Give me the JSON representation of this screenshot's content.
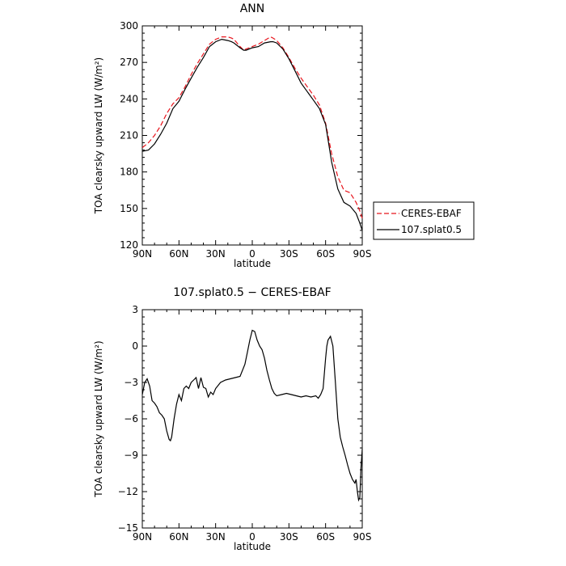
{
  "chart_data": [
    {
      "type": "line",
      "title": "ANN",
      "xlabel": "latitude",
      "ylabel": "TOA clearsky upward LW (W/m²)",
      "xlim": [
        90,
        -90
      ],
      "ylim": [
        120,
        300
      ],
      "xticks": [
        90,
        60,
        30,
        0,
        -30,
        -60,
        -90
      ],
      "xtick_labels": [
        "90N",
        "60N",
        "30N",
        "0",
        "30S",
        "60S",
        "90S"
      ],
      "yticks": [
        120,
        150,
        180,
        210,
        240,
        270,
        300
      ],
      "ytick_labels": [
        "120",
        "150",
        "180",
        "210",
        "240",
        "270",
        "300"
      ],
      "legend": "right",
      "series": [
        {
          "name": "CERES-EBAF",
          "color": "#e8141c",
          "dash": "dashed",
          "x": [
            90,
            85,
            80,
            75,
            70,
            65,
            60,
            55,
            50,
            45,
            40,
            35,
            30,
            25,
            20,
            17,
            15,
            10,
            7,
            5,
            0,
            -5,
            -10,
            -15,
            -17,
            -20,
            -25,
            -30,
            -35,
            -40,
            -45,
            -50,
            -55,
            -60,
            -65,
            -70,
            -75,
            -80,
            -85,
            -88,
            -90
          ],
          "y": [
            200,
            204,
            210,
            218,
            228,
            236,
            241,
            250,
            260,
            269,
            277,
            285,
            289,
            291,
            291,
            290,
            289,
            283,
            280,
            281,
            283,
            285,
            288,
            291,
            290,
            288,
            282,
            274,
            265,
            257,
            250,
            243,
            235,
            220,
            195,
            176,
            165,
            163,
            155,
            148,
            142
          ]
        },
        {
          "name": "107.splat0.5",
          "color": "#000000",
          "dash": "solid",
          "x": [
            90,
            85,
            80,
            75,
            70,
            65,
            60,
            55,
            50,
            45,
            40,
            35,
            30,
            25,
            20,
            17,
            15,
            10,
            7,
            5,
            0,
            -5,
            -10,
            -15,
            -17,
            -20,
            -25,
            -30,
            -35,
            -40,
            -45,
            -50,
            -55,
            -60,
            -65,
            -70,
            -75,
            -80,
            -85,
            -88,
            -90
          ],
          "y": [
            197,
            198,
            203,
            211,
            220,
            232,
            238,
            248,
            257,
            266,
            274,
            283,
            287,
            289,
            288,
            287,
            286,
            282,
            280,
            280,
            282,
            283,
            286,
            287,
            287,
            286,
            281,
            273,
            263,
            253,
            246,
            239,
            232,
            219,
            188,
            166,
            155,
            152,
            146,
            138,
            132
          ]
        }
      ]
    },
    {
      "type": "line",
      "title": "107.splat0.5 − CERES-EBAF",
      "xlabel": "latitude",
      "ylabel": "TOA clearsky upward LW (W/m²)",
      "xlim": [
        90,
        -90
      ],
      "ylim": [
        -15,
        3
      ],
      "xticks": [
        90,
        60,
        30,
        0,
        -30,
        -60,
        -90
      ],
      "xtick_labels": [
        "90N",
        "60N",
        "30N",
        "0",
        "30S",
        "60S",
        "90S"
      ],
      "yticks": [
        3,
        0,
        -3,
        -6,
        -9,
        -12,
        -15
      ],
      "ytick_labels": [
        "3",
        "0",
        "−3",
        "−6",
        "−9",
        "−12",
        "−15"
      ],
      "series": [
        {
          "color": "#000000",
          "x": [
            90,
            88,
            86,
            84,
            82,
            80,
            78,
            76,
            74,
            72,
            70,
            68,
            67,
            66,
            64,
            62,
            60,
            58,
            56,
            54,
            52,
            50,
            48,
            46,
            44,
            42,
            40,
            38,
            36,
            34,
            32,
            30,
            26,
            22,
            18,
            14,
            10,
            6,
            4,
            2,
            0,
            -2,
            -4,
            -6,
            -8,
            -10,
            -12,
            -14,
            -16,
            -18,
            -20,
            -24,
            -28,
            -32,
            -36,
            -40,
            -44,
            -48,
            -52,
            -54,
            -56,
            -58,
            -60,
            -61,
            -62,
            -64,
            -66,
            -68,
            -70,
            -72,
            -74,
            -76,
            -78,
            -80,
            -82,
            -84,
            -85,
            -86,
            -87,
            -88,
            -89,
            -90
          ],
          "y": [
            -4.0,
            -3.0,
            -2.7,
            -3.3,
            -4.5,
            -4.7,
            -5.0,
            -5.5,
            -5.7,
            -6.0,
            -7.0,
            -7.7,
            -7.8,
            -7.5,
            -6.0,
            -4.8,
            -4.0,
            -4.5,
            -3.5,
            -3.3,
            -3.5,
            -3.0,
            -2.8,
            -2.6,
            -3.5,
            -2.6,
            -3.4,
            -3.5,
            -4.2,
            -3.8,
            -4.0,
            -3.5,
            -3.0,
            -2.8,
            -2.7,
            -2.6,
            -2.5,
            -1.5,
            -0.5,
            0.5,
            1.3,
            1.2,
            0.5,
            0.0,
            -0.3,
            -1.0,
            -2.0,
            -2.8,
            -3.5,
            -3.9,
            -4.1,
            -4.0,
            -3.9,
            -4.0,
            -4.1,
            -4.2,
            -4.1,
            -4.2,
            -4.1,
            -4.3,
            -4.0,
            -3.5,
            -1.0,
            0.0,
            0.5,
            0.8,
            0.0,
            -3.0,
            -6.0,
            -7.5,
            -8.3,
            -9.0,
            -9.8,
            -10.5,
            -11.0,
            -11.3,
            -11.0,
            -12.0,
            -12.7,
            -12.5,
            -10.0,
            -8.5
          ]
        }
      ]
    }
  ]
}
